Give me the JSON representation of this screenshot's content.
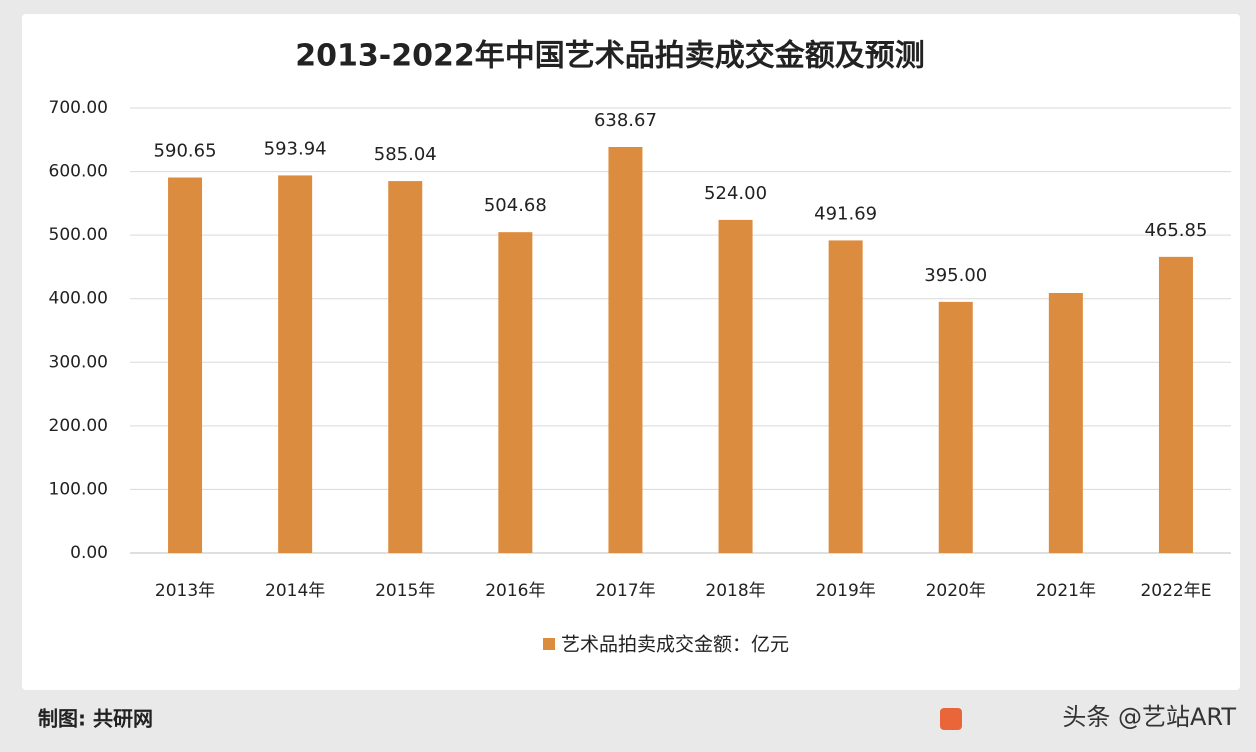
{
  "chart_data": {
    "type": "bar",
    "title": "2013-2022年中国艺术品拍卖成交金额及预测",
    "categories": [
      "2013年",
      "2014年",
      "2015年",
      "2016年",
      "2017年",
      "2018年",
      "2019年",
      "2020年",
      "2021年",
      "2022年E"
    ],
    "series": [
      {
        "name": "艺术品拍卖成交金额：亿元",
        "color": "#dc8c3e",
        "values": [
          590.65,
          593.94,
          585.04,
          504.68,
          638.67,
          524,
          491.69,
          395,
          409,
          465.85
        ],
        "value_labels": [
          "590.65",
          "593.94",
          "585.04",
          "504.68",
          "638.67",
          "524.00",
          "491.69",
          "395.00",
          null,
          "465.85"
        ]
      }
    ],
    "ylim": [
      0,
      700
    ],
    "yticks": [
      {
        "value": 0,
        "label": "0.00"
      },
      {
        "value": 100,
        "label": "100.00"
      },
      {
        "value": 200,
        "label": "200.00"
      },
      {
        "value": 300,
        "label": "300.00"
      },
      {
        "value": 400,
        "label": "400.00"
      },
      {
        "value": 500,
        "label": "500.00"
      },
      {
        "value": 600,
        "label": "600.00"
      },
      {
        "value": 700,
        "label": "700.00"
      }
    ],
    "grid": true
  },
  "footer": {
    "source": "制图: 共研网",
    "watermark": "头条 @艺站ART"
  }
}
